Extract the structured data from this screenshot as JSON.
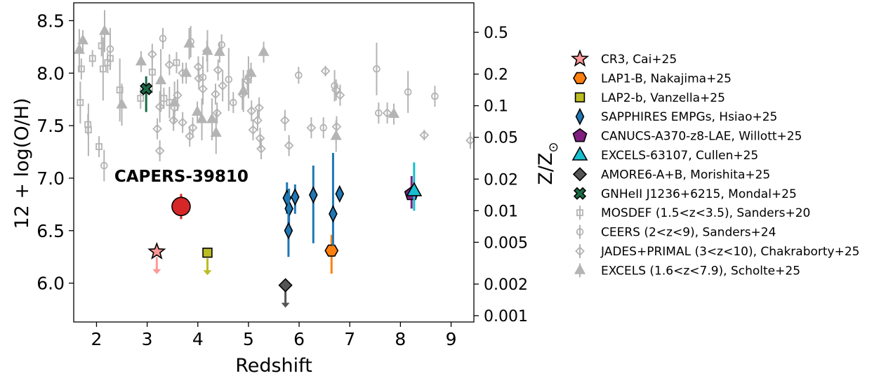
{
  "chart_data": {
    "type": "scatter",
    "xlabel": "Redshift",
    "ylabel": "12 + log(O/H)",
    "y2label": "Z/Z",
    "y2label_sub": "⊙",
    "xlim": [
      1.55,
      9.45
    ],
    "ylim": [
      5.63,
      8.67
    ],
    "xticks": [
      2,
      3,
      4,
      5,
      6,
      7,
      8,
      9
    ],
    "yticks": [
      6.0,
      6.5,
      7.0,
      7.5,
      8.0,
      8.5
    ],
    "y2ticks": [
      {
        "label": "0.001",
        "value": 0.001
      },
      {
        "label": "0.002",
        "value": 0.002
      },
      {
        "label": "0.005",
        "value": 0.005
      },
      {
        "label": "0.01",
        "value": 0.01
      },
      {
        "label": "0.02",
        "value": 0.02
      },
      {
        "label": "0.05",
        "value": 0.05
      },
      {
        "label": "0.1",
        "value": 0.1
      },
      {
        "label": "0.2",
        "value": 0.2
      },
      {
        "label": "0.5",
        "value": 0.5
      }
    ],
    "solar_12logOH": 8.69,
    "annotation": {
      "text": "CAPERS-39810",
      "x": 3.1,
      "y": 7.02,
      "color": "#d62728"
    },
    "highlight": {
      "x": 3.67,
      "y": 6.73,
      "yerr": [
        0.12,
        0.12
      ],
      "color": "#d62728"
    },
    "series": [
      {
        "name": "CR3, Cai+25",
        "marker": "star",
        "color": "#ff9896",
        "edge": "#000000",
        "points": [
          {
            "x": 3.19,
            "y": 6.3,
            "upper": true
          }
        ]
      },
      {
        "name": "LAP1-B, Nakajima+25",
        "marker": "hexagon",
        "color": "#ff7f0e",
        "edge": "#000000",
        "points": [
          {
            "x": 6.64,
            "y": 6.31,
            "yerr": [
              0.22,
              0.15
            ]
          }
        ]
      },
      {
        "name": "LAP2-b, Vanzella+25",
        "marker": "square",
        "color": "#bcbd22",
        "edge": "#000000",
        "points": [
          {
            "x": 4.19,
            "y": 6.29,
            "upper": true
          }
        ]
      },
      {
        "name": "SAPPHIRES EMPGs, Hsiao+25",
        "marker": "thin_diamond",
        "color": "#1f77b4",
        "edge": "#000000",
        "points": [
          {
            "x": 5.76,
            "y": 6.81,
            "yerr": [
              0.15,
              0.15
            ]
          },
          {
            "x": 5.8,
            "y": 6.71,
            "yerr": [
              0.15,
              0.19
            ]
          },
          {
            "x": 5.79,
            "y": 6.5,
            "yerr": [
              0.25,
              0.3
            ]
          },
          {
            "x": 5.92,
            "y": 6.82,
            "yerr": [
              0.16,
              0.12
            ]
          },
          {
            "x": 6.28,
            "y": 6.84,
            "yerr": [
              0.46,
              0.28
            ]
          },
          {
            "x": 6.67,
            "y": 6.66,
            "yerr": [
              0.3,
              0.58
            ]
          },
          {
            "x": 6.8,
            "y": 6.85,
            "yerr": [
              0.06,
              0.06
            ]
          }
        ]
      },
      {
        "name": "CANUCS-A370-z8-LAE, Willott+25",
        "marker": "pentagon",
        "color": "#7f1f7f",
        "edge": "#000000",
        "points": [
          {
            "x": 8.22,
            "y": 6.85,
            "yerr": [
              0.14,
              0.17
            ]
          }
        ]
      },
      {
        "name": "EXCELS-63107, Cullen+25",
        "marker": "triangle",
        "color": "#17becf",
        "edge": "#000000",
        "points": [
          {
            "x": 8.27,
            "y": 6.88,
            "yerr": [
              0.19,
              0.27
            ]
          }
        ]
      },
      {
        "name": "AMORE6-A+B, Morishita+25",
        "marker": "diamond",
        "color": "#555555",
        "edge": "#000000",
        "points": [
          {
            "x": 5.73,
            "y": 5.98,
            "upper": true
          }
        ]
      },
      {
        "name": "GNHeII J1236+6215, Mondal+25",
        "marker": "xfill",
        "color": "#1a6b46",
        "edge": "#000000",
        "points": [
          {
            "x": 2.98,
            "y": 7.85,
            "yerr": [
              0.22,
              0.12
            ]
          }
        ]
      },
      {
        "name": "MOSDEF (1.5<z<3.5), Sanders+20",
        "marker": "open_square",
        "color": "#b4b4b4",
        "points": [
          {
            "x": 1.7,
            "y": 8.04,
            "yerr": [
              0.1,
              0.1
            ]
          },
          {
            "x": 1.68,
            "y": 7.72,
            "yerr": [
              0.2,
              0.2
            ]
          },
          {
            "x": 1.83,
            "y": 7.51,
            "yerr": [
              0.1,
              0.1
            ]
          },
          {
            "x": 1.84,
            "y": 7.46,
            "yerr": [
              0.25,
              0.25
            ]
          },
          {
            "x": 1.92,
            "y": 8.14,
            "yerr": [
              0.08,
              0.08
            ]
          },
          {
            "x": 2.05,
            "y": 7.3,
            "yerr": [
              0.1,
              0.1
            ]
          },
          {
            "x": 2.1,
            "y": 8.26,
            "yerr": [
              0.1,
              0.1
            ]
          },
          {
            "x": 2.13,
            "y": 8.04,
            "yerr": [
              0.3,
              0.3
            ]
          },
          {
            "x": 2.22,
            "y": 8.1,
            "yerr": [
              0.1,
              0.1
            ]
          },
          {
            "x": 2.27,
            "y": 8.14,
            "yerr": [
              0.1,
              0.1
            ]
          },
          {
            "x": 2.46,
            "y": 7.84,
            "yerr": [
              0.3,
              0.3
            ]
          },
          {
            "x": 2.87,
            "y": 7.76,
            "yerr": [
              0.1,
              0.1
            ]
          },
          {
            "x": 3.1,
            "y": 8.01,
            "yerr": [
              0.2,
              0.2
            ]
          },
          {
            "x": 3.33,
            "y": 7.76,
            "yerr": [
              0.1,
              0.1
            ]
          },
          {
            "x": 3.58,
            "y": 8.1,
            "yerr": [
              0.1,
              0.1
            ]
          },
          {
            "x": 3.44,
            "y": 7.72,
            "yerr": [
              0.15,
              0.15
            ]
          }
        ]
      },
      {
        "name": "CEERS (2<z<9), Sanders+24",
        "marker": "open_circle",
        "color": "#b4b4b4",
        "points": [
          {
            "x": 2.15,
            "y": 7.12,
            "yerr": [
              0.15,
              0.15
            ]
          },
          {
            "x": 2.27,
            "y": 8.23,
            "yerr": [
              0.2,
              0.2
            ]
          },
          {
            "x": 3.31,
            "y": 8.33,
            "yerr": [
              0.1,
              0.1
            ]
          },
          {
            "x": 3.86,
            "y": 8.3,
            "yerr": [
              0.15,
              0.15
            ]
          },
          {
            "x": 4.1,
            "y": 7.96,
            "yerr": [
              0.2,
              0.2
            ]
          },
          {
            "x": 4.47,
            "y": 8.27,
            "yerr": [
              0.1,
              0.1
            ]
          },
          {
            "x": 4.61,
            "y": 7.94,
            "yerr": [
              0.3,
              0.3
            ]
          },
          {
            "x": 5.0,
            "y": 7.96,
            "yerr": [
              0.2,
              0.2
            ]
          },
          {
            "x": 5.99,
            "y": 7.98,
            "yerr": [
              0.08,
              0.08
            ]
          },
          {
            "x": 6.7,
            "y": 7.88,
            "yerr": [
              0.15,
              0.15
            ]
          },
          {
            "x": 7.53,
            "y": 8.04,
            "yerr": [
              0.25,
              0.25
            ]
          },
          {
            "x": 8.15,
            "y": 7.82,
            "yerr": [
              0.2,
              0.2
            ]
          },
          {
            "x": 8.68,
            "y": 7.78,
            "yerr": [
              0.1,
              0.1
            ]
          },
          {
            "x": 7.57,
            "y": 7.62,
            "yerr": [
              0.1,
              0.1
            ]
          },
          {
            "x": 6.48,
            "y": 7.48,
            "yerr": [
              0.1,
              0.1
            ]
          },
          {
            "x": 4.7,
            "y": 7.72,
            "yerr": [
              0.1,
              0.1
            ]
          }
        ]
      },
      {
        "name": "JADES+PRIMAL (3<z<10), Chakraborty+25",
        "marker": "open_diamond",
        "color": "#b4b4b4",
        "points": [
          {
            "x": 3.1,
            "y": 8.18,
            "yerr": [
              0.1,
              0.1
            ]
          },
          {
            "x": 3.2,
            "y": 7.47,
            "yerr": [
              0.1,
              0.1
            ]
          },
          {
            "x": 3.25,
            "y": 7.68,
            "yerr": [
              0.15,
              0.15
            ]
          },
          {
            "x": 3.25,
            "y": 7.26,
            "yerr": [
              0.1,
              0.1
            ]
          },
          {
            "x": 3.44,
            "y": 8.08,
            "yerr": [
              0.1,
              0.1
            ]
          },
          {
            "x": 3.54,
            "y": 7.67,
            "yerr": [
              0.1,
              0.1
            ]
          },
          {
            "x": 3.6,
            "y": 7.79,
            "yerr": [
              0.15,
              0.15
            ]
          },
          {
            "x": 3.7,
            "y": 8.0,
            "yerr": [
              0.1,
              0.1
            ]
          },
          {
            "x": 3.7,
            "y": 7.53,
            "yerr": [
              0.1,
              0.1
            ]
          },
          {
            "x": 3.84,
            "y": 7.4,
            "yerr": [
              0.1,
              0.1
            ]
          },
          {
            "x": 3.9,
            "y": 7.48,
            "yerr": [
              0.1,
              0.1
            ]
          },
          {
            "x": 4.01,
            "y": 8.06,
            "yerr": [
              0.1,
              0.1
            ]
          },
          {
            "x": 4.1,
            "y": 7.85,
            "yerr": [
              0.15,
              0.15
            ]
          },
          {
            "x": 4.18,
            "y": 8.21,
            "yerr": [
              0.1,
              0.1
            ]
          },
          {
            "x": 4.35,
            "y": 7.8,
            "yerr": [
              0.1,
              0.1
            ]
          },
          {
            "x": 4.38,
            "y": 7.62,
            "yerr": [
              0.1,
              0.1
            ]
          },
          {
            "x": 4.4,
            "y": 8.03,
            "yerr": [
              0.1,
              0.1
            ]
          },
          {
            "x": 4.49,
            "y": 7.88,
            "yerr": [
              0.15,
              0.15
            ]
          },
          {
            "x": 4.88,
            "y": 7.8,
            "yerr": [
              0.15,
              0.15
            ]
          },
          {
            "x": 4.98,
            "y": 7.93,
            "yerr": [
              0.1,
              0.1
            ]
          },
          {
            "x": 5.06,
            "y": 7.64,
            "yerr": [
              0.1,
              0.1
            ]
          },
          {
            "x": 5.09,
            "y": 7.46,
            "yerr": [
              0.1,
              0.1
            ]
          },
          {
            "x": 5.18,
            "y": 7.55,
            "yerr": [
              0.1,
              0.1
            ]
          },
          {
            "x": 5.21,
            "y": 7.67,
            "yerr": [
              0.1,
              0.1
            ]
          },
          {
            "x": 5.23,
            "y": 7.38,
            "yerr": [
              0.1,
              0.1
            ]
          },
          {
            "x": 5.25,
            "y": 7.28,
            "yerr": [
              0.1,
              0.1
            ]
          },
          {
            "x": 5.72,
            "y": 7.55,
            "yerr": [
              0.1,
              0.1
            ]
          },
          {
            "x": 5.8,
            "y": 7.31,
            "yerr": [
              0.1,
              0.1
            ]
          },
          {
            "x": 6.24,
            "y": 7.48,
            "yerr": [
              0.1,
              0.1
            ]
          },
          {
            "x": 6.52,
            "y": 8.02,
            "yerr": [
              0.05,
              0.05
            ]
          },
          {
            "x": 6.73,
            "y": 7.84,
            "yerr": [
              0.1,
              0.1
            ]
          },
          {
            "x": 6.81,
            "y": 7.79,
            "yerr": [
              0.1,
              0.1
            ]
          },
          {
            "x": 6.74,
            "y": 7.49,
            "yerr": [
              0.1,
              0.1
            ]
          },
          {
            "x": 7.74,
            "y": 7.62,
            "yerr": [
              0.1,
              0.1
            ]
          },
          {
            "x": 8.47,
            "y": 7.41,
            "yerr": [
              0.05,
              0.05
            ]
          },
          {
            "x": 9.38,
            "y": 7.36,
            "yerr": [
              0.08,
              0.08
            ]
          },
          {
            "x": 4.02,
            "y": 7.95,
            "yerr": [
              0.1,
              0.1
            ]
          },
          {
            "x": 3.52,
            "y": 7.55,
            "yerr": [
              0.1,
              0.1
            ]
          }
        ]
      },
      {
        "name": "EXCELS (1.6<z<7.9), Scholte+25",
        "marker": "tri_up",
        "color": "#b4b4b4",
        "points": [
          {
            "x": 1.66,
            "y": 8.22,
            "yerr": [
              0.2,
              0.2
            ]
          },
          {
            "x": 1.73,
            "y": 8.31,
            "yerr": [
              0.1,
              0.1
            ]
          },
          {
            "x": 2.16,
            "y": 8.4,
            "yerr": [
              0.2,
              0.2
            ]
          },
          {
            "x": 2.5,
            "y": 7.7,
            "yerr": [
              0.2,
              0.2
            ]
          },
          {
            "x": 2.88,
            "y": 8.11,
            "yerr": [
              0.1,
              0.1
            ]
          },
          {
            "x": 3.27,
            "y": 7.93,
            "yerr": [
              0.3,
              0.3
            ]
          },
          {
            "x": 3.54,
            "y": 7.72,
            "yerr": [
              0.2,
              0.2
            ]
          },
          {
            "x": 3.77,
            "y": 8.0,
            "yerr": [
              0.1,
              0.1
            ]
          },
          {
            "x": 3.83,
            "y": 8.28,
            "yerr": [
              0.15,
              0.15
            ]
          },
          {
            "x": 4.19,
            "y": 8.21,
            "yerr": [
              0.2,
              0.2
            ]
          },
          {
            "x": 4.28,
            "y": 7.56,
            "yerr": [
              0.2,
              0.2
            ]
          },
          {
            "x": 4.43,
            "y": 8.2,
            "yerr": [
              0.1,
              0.1
            ]
          },
          {
            "x": 4.9,
            "y": 7.83,
            "yerr": [
              0.2,
              0.2
            ]
          },
          {
            "x": 5.05,
            "y": 8.0,
            "yerr": [
              0.1,
              0.1
            ]
          },
          {
            "x": 5.3,
            "y": 8.2,
            "yerr": [
              0.1,
              0.1
            ]
          },
          {
            "x": 6.73,
            "y": 7.4,
            "yerr": [
              0.15,
              0.15
            ]
          },
          {
            "x": 7.87,
            "y": 7.61,
            "yerr": [
              0.1,
              0.1
            ]
          },
          {
            "x": 4.08,
            "y": 7.56,
            "yerr": [
              0.2,
              0.2
            ]
          },
          {
            "x": 4.36,
            "y": 7.43,
            "yerr": [
              0.2,
              0.2
            ]
          },
          {
            "x": 3.99,
            "y": 7.63,
            "yerr": [
              0.1,
              0.1
            ]
          }
        ]
      }
    ]
  }
}
